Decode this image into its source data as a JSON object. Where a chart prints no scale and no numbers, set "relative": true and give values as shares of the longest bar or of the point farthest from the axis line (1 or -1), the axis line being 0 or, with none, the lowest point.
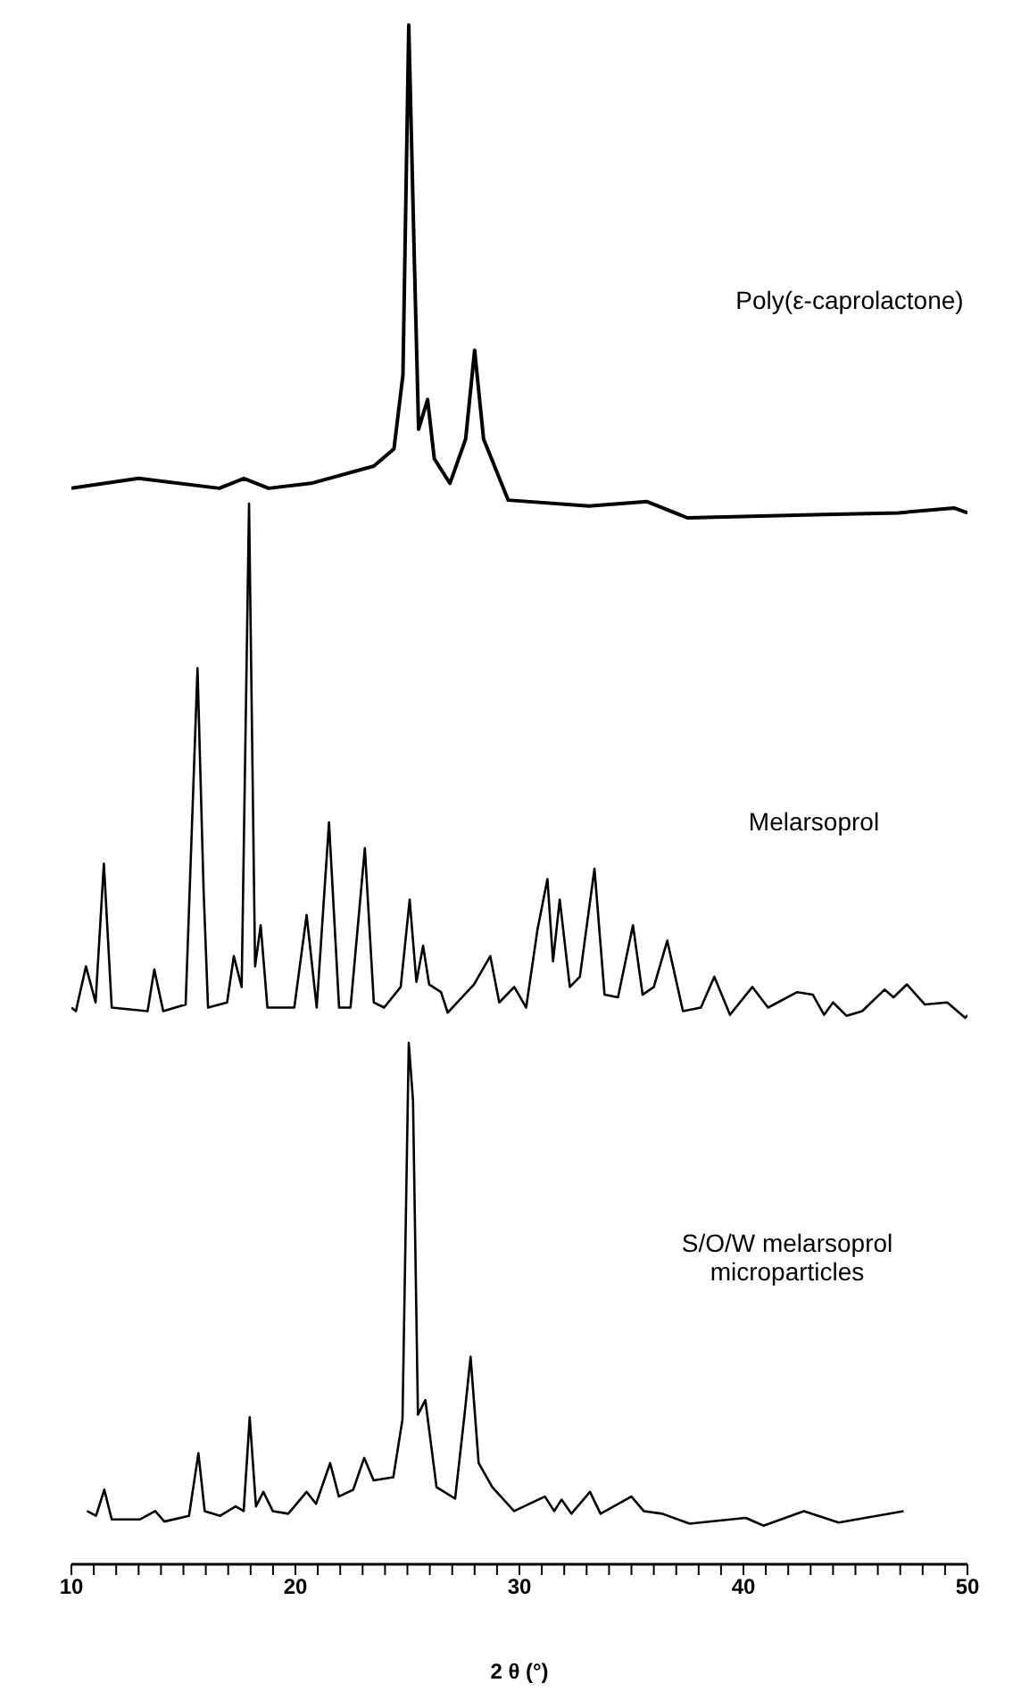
{
  "chart_data": [
    {
      "type": "line",
      "relative": true,
      "xlim": [
        10,
        50
      ],
      "tick_labels": false,
      "series": [
        {
          "name": "Poly(ε-caprolactone)",
          "color": "#000000",
          "x": [
            10.0,
            13.0,
            16.6,
            17.7,
            18.8,
            20.7,
            23.5,
            24.4,
            24.8,
            25.06,
            25.3,
            25.5,
            25.9,
            26.2,
            26.9,
            27.6,
            28.0,
            28.4,
            29.5,
            33.1,
            35.7,
            37.5,
            43.6,
            46.9,
            49.4,
            50.0
          ],
          "values": [
            0.06,
            0.08,
            0.06,
            0.08,
            0.06,
            0.07,
            0.105,
            0.14,
            0.29,
            1.0,
            0.54,
            0.18,
            0.24,
            0.12,
            0.07,
            0.16,
            0.34,
            0.16,
            0.036,
            0.024,
            0.033,
            0,
            0.007,
            0.01,
            0.02,
            0.01
          ]
        }
      ]
    },
    {
      "type": "line",
      "relative": true,
      "xlim": [
        10,
        50
      ],
      "tick_labels": false,
      "series": [
        {
          "name": "Melarsoprol",
          "color": "#000000",
          "x": [
            10.0,
            10.2,
            10.65,
            11.08,
            11.45,
            11.8,
            13.4,
            13.7,
            14.1,
            15.1,
            15.63,
            15.9,
            16.1,
            16.95,
            17.25,
            17.6,
            17.93,
            18.2,
            18.45,
            18.75,
            19.95,
            20.5,
            20.95,
            21.5,
            21.95,
            22.46,
            23.1,
            23.5,
            23.96,
            24.7,
            25.1,
            25.4,
            25.7,
            25.97,
            26.5,
            26.8,
            27.97,
            28.7,
            29.1,
            29.77,
            30.3,
            30.8,
            31.25,
            31.5,
            31.8,
            32.25,
            32.7,
            33.35,
            33.8,
            34.4,
            35.07,
            35.5,
            36.0,
            36.6,
            37.3,
            38.1,
            38.7,
            39.4,
            40.4,
            41.1,
            42.4,
            43.1,
            43.6,
            44.0,
            44.6,
            45.3,
            46.3,
            46.7,
            47.3,
            48.1,
            49.1,
            49.9,
            50.0
          ],
          "values": [
            0.02,
            0.013,
            0.1,
            0.03,
            0.3,
            0.02,
            0.013,
            0.094,
            0.013,
            0.026,
            0.68,
            0.25,
            0.02,
            0.03,
            0.12,
            0.06,
            1.0,
            0.1,
            0.18,
            0.02,
            0.02,
            0.2,
            0.02,
            0.38,
            0.02,
            0.02,
            0.33,
            0.03,
            0.02,
            0.06,
            0.23,
            0.07,
            0.14,
            0.065,
            0.05,
            0.01,
            0.065,
            0.12,
            0.03,
            0.06,
            0.02,
            0.17,
            0.27,
            0.11,
            0.23,
            0.06,
            0.08,
            0.29,
            0.045,
            0.04,
            0.18,
            0.045,
            0.06,
            0.15,
            0.013,
            0.02,
            0.08,
            0.006,
            0.06,
            0.02,
            0.05,
            0.045,
            0.006,
            0.03,
            0.004,
            0.013,
            0.055,
            0.04,
            0.065,
            0.026,
            0.03,
            0,
            0.005
          ]
        }
      ]
    },
    {
      "type": "line",
      "relative": true,
      "xlim": [
        10,
        50
      ],
      "tick_labels": "x",
      "xlabel": "2 θ (°)",
      "xticks": [
        10,
        {
          "value": 11,
          "label": null
        },
        {
          "value": 12,
          "label": null
        },
        {
          "value": 13,
          "label": null
        },
        {
          "value": 14,
          "label": null
        },
        {
          "value": 15,
          "label": null
        },
        {
          "value": 16,
          "label": null
        },
        {
          "value": 17,
          "label": null
        },
        {
          "value": 18,
          "label": null
        },
        {
          "value": 19,
          "label": null
        },
        20,
        {
          "value": 21,
          "label": null
        },
        {
          "value": 22,
          "label": null
        },
        {
          "value": 23,
          "label": null
        },
        {
          "value": 24,
          "label": null
        },
        {
          "value": 25,
          "label": null
        },
        {
          "value": 26,
          "label": null
        },
        {
          "value": 27,
          "label": null
        },
        {
          "value": 28,
          "label": null
        },
        {
          "value": 29,
          "label": null
        },
        30,
        {
          "value": 31,
          "label": null
        },
        {
          "value": 32,
          "label": null
        },
        {
          "value": 33,
          "label": null
        },
        {
          "value": 34,
          "label": null
        },
        {
          "value": 35,
          "label": null
        },
        {
          "value": 36,
          "label": null
        },
        {
          "value": 37,
          "label": null
        },
        {
          "value": 38,
          "label": null
        },
        {
          "value": 39,
          "label": null
        },
        40,
        {
          "value": 41,
          "label": null
        },
        {
          "value": 42,
          "label": null
        },
        {
          "value": 43,
          "label": null
        },
        {
          "value": 44,
          "label": null
        },
        {
          "value": 45,
          "label": null
        },
        {
          "value": 46,
          "label": null
        },
        {
          "value": 47,
          "label": null
        },
        {
          "value": 48,
          "label": null
        },
        {
          "value": 49,
          "label": null
        },
        50
      ],
      "series": [
        {
          "name": "S/O/W melarsoprol microparticles",
          "color": "#000000",
          "x": [
            10.7,
            11.1,
            11.47,
            11.8,
            13.05,
            13.74,
            14.15,
            15.25,
            15.67,
            15.95,
            16.64,
            17.33,
            17.69,
            17.96,
            18.24,
            18.57,
            18.99,
            19.68,
            20.5,
            20.92,
            21.55,
            21.94,
            22.58,
            23.07,
            23.49,
            24.37,
            24.78,
            25.06,
            25.25,
            25.47,
            25.8,
            26.3,
            27.13,
            27.55,
            27.82,
            28.18,
            28.79,
            29.76,
            31.14,
            31.55,
            31.88,
            32.32,
            33.15,
            33.62,
            35.0,
            35.55,
            36.38,
            37.6,
            40.1,
            40.9,
            42.7,
            44.25,
            47.15
          ],
          "values": [
            0.102,
            0.093,
            0.143,
            0.086,
            0.086,
            0.102,
            0.082,
            0.093,
            0.213,
            0.102,
            0.093,
            0.111,
            0.102,
            0.282,
            0.111,
            0.139,
            0.102,
            0.097,
            0.139,
            0.116,
            0.194,
            0.13,
            0.143,
            0.204,
            0.161,
            0.167,
            0.278,
            1.0,
            0.889,
            0.287,
            0.315,
            0.148,
            0.126,
            0.287,
            0.398,
            0.194,
            0.148,
            0.102,
            0.13,
            0.102,
            0.124,
            0.097,
            0.139,
            0.097,
            0.13,
            0.102,
            0.097,
            0.078,
            0.089,
            0.074,
            0.102,
            0.08,
            0.102
          ]
        }
      ]
    }
  ]
}
